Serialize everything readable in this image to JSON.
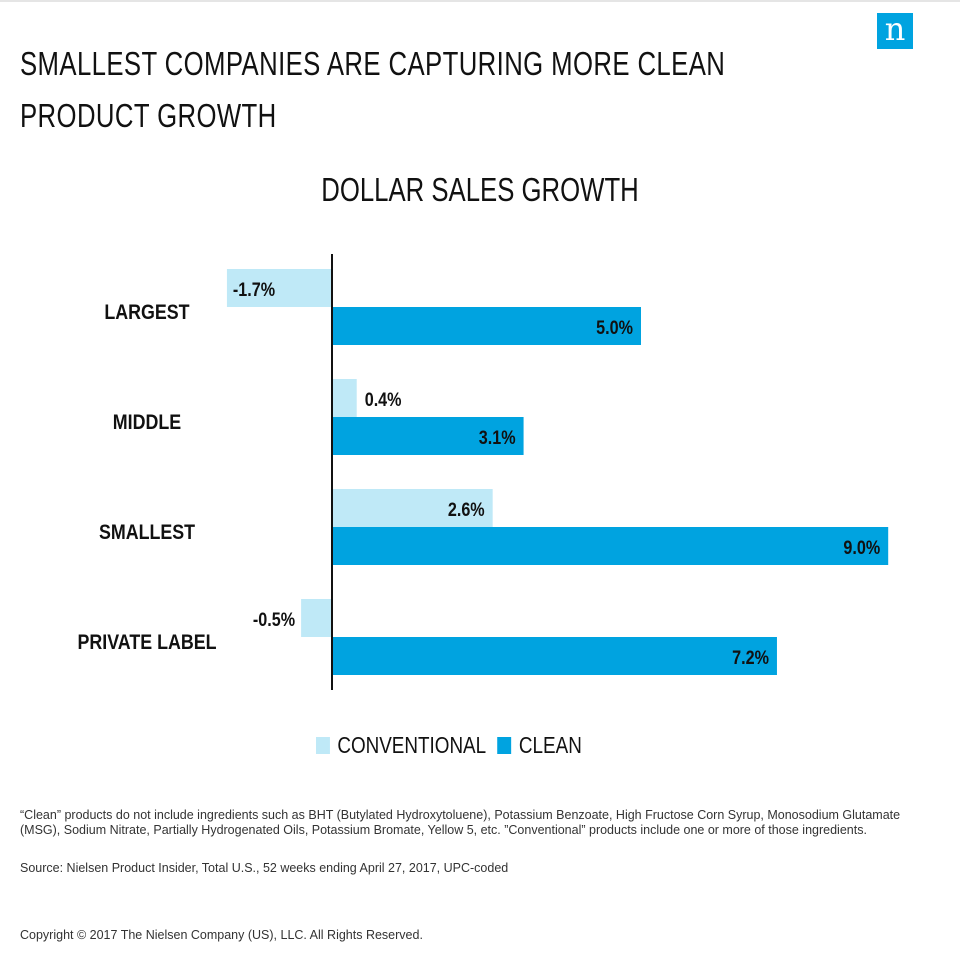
{
  "logo": {
    "text": "n"
  },
  "headline": {
    "line1": "SMALLEST COMPANIES ARE CAPTURING MORE CLEAN",
    "line2": "PRODUCT  GROWTH"
  },
  "colors": {
    "conventional": "#bfe9f7",
    "clean": "#00a3e0",
    "axis": "#111111",
    "brand": "#00a3e0"
  },
  "chart_data": {
    "type": "bar",
    "orientation": "horizontal",
    "title": "DOLLAR SALES GROWTH",
    "categories": [
      "LARGEST",
      "MIDDLE",
      "SMALLEST",
      "PRIVATE LABEL"
    ],
    "series": [
      {
        "name": "CONVENTIONAL",
        "values": [
          -1.7,
          0.4,
          2.6,
          -0.5
        ],
        "labels": [
          "-1.7%",
          "0.4%",
          "2.6%",
          "-0.5%"
        ]
      },
      {
        "name": "CLEAN",
        "values": [
          5.0,
          3.1,
          9.0,
          7.2
        ],
        "labels": [
          "5.0%",
          "3.1%",
          "9.0%",
          "7.2%"
        ]
      }
    ],
    "unit": "%",
    "legend_position": "bottom",
    "grid": false
  },
  "legend": {
    "conventional": "CONVENTIONAL",
    "clean": "CLEAN"
  },
  "footnote": {
    "note": "“Clean” products do not include ingredients such as BHT (Butylated Hydroxytoluene), Potassium Benzoate, High Fructose Corn Syrup, Monosodium Glutamate (MSG), Sodium Nitrate, Partially Hydrogenated Oils, Potassium Bromate, Yellow 5, etc. ”Conventional” products include one or more of those ingredients.",
    "source": "Source: Nielsen Product Insider, Total U.S., 52 weeks ending April 27, 2017, UPC-coded",
    "copyright": "Copyright © 2017 The Nielsen Company (US), LLC. All Rights Reserved."
  }
}
